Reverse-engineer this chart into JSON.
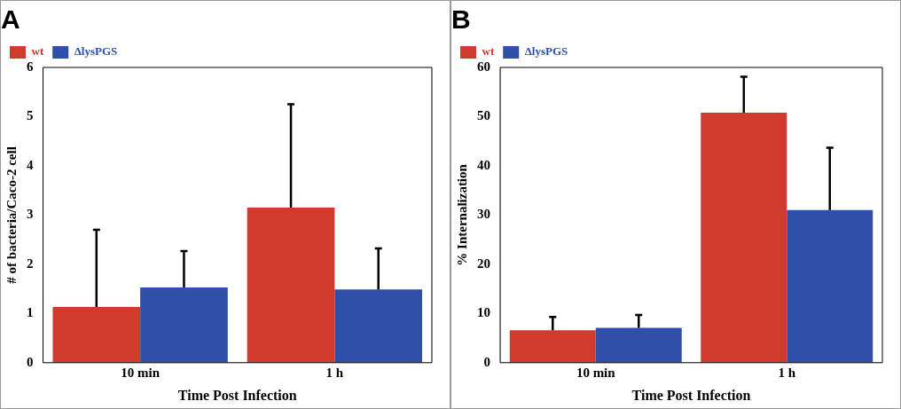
{
  "chart_data": [
    {
      "type": "bar",
      "title": "A",
      "xlabel": "Time Post Infection",
      "ylabel": "# of bacteria/Caco-2 cell",
      "categories": [
        "10 min",
        "1 h"
      ],
      "ylim": [
        0,
        6
      ],
      "yticks": [
        0,
        1,
        2,
        3,
        4,
        5,
        6
      ],
      "grid": false,
      "legend": "top left",
      "series": [
        {
          "name": "wt",
          "color": "#d03a2f",
          "values": [
            1.13,
            3.15
          ],
          "errors": [
            [
              1.13,
              2.7
            ],
            [
              3.15,
              5.25
            ]
          ]
        },
        {
          "name": "ΔlysPGS",
          "color": "#2f4fa8",
          "values": [
            1.53,
            1.49
          ],
          "errors": [
            [
              1.53,
              2.27
            ],
            [
              1.49,
              2.32
            ]
          ]
        }
      ]
    },
    {
      "type": "bar",
      "title": "B",
      "xlabel": "Time Post Infection",
      "ylabel": "% Internalization",
      "categories": [
        "10 min",
        "1 h"
      ],
      "ylim": [
        0,
        60
      ],
      "yticks": [
        0,
        10,
        20,
        30,
        40,
        50,
        60
      ],
      "grid": false,
      "legend": "top left",
      "series": [
        {
          "name": "wt",
          "color": "#d03a2f",
          "values": [
            6.6,
            50.8
          ],
          "errors": [
            [
              6.6,
              9.3
            ],
            [
              50.8,
              58.1
            ]
          ]
        },
        {
          "name": "ΔlysPGS",
          "color": "#2f4fa8",
          "values": [
            7.1,
            31.0
          ],
          "errors": [
            [
              7.1,
              9.7
            ],
            [
              31.0,
              43.7
            ]
          ]
        }
      ]
    }
  ]
}
